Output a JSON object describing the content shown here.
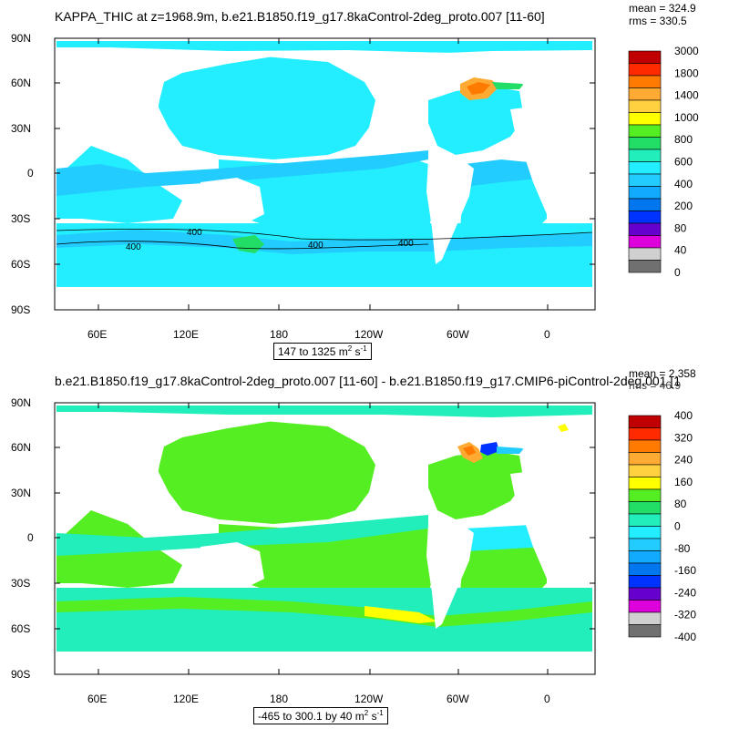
{
  "panel_top": {
    "title": "KAPPA_THIC at z=1968.9m, b.e21.B1850.f19_g17.8kaControl-2deg_proto.007 [11-60]",
    "mean": "mean = 324.9",
    "rms": "rms = 330.5",
    "units_range": "147 to 1325",
    "units_unit": "m",
    "units_exp": "2",
    "units_tail": "s",
    "units_exp2": "-1",
    "colorbar_labels": [
      "3000",
      "1800",
      "1400",
      "1000",
      "800",
      "600",
      "400",
      "200",
      "80",
      "40",
      "0"
    ],
    "colorbar_colors": [
      "#c00000",
      "#ff2a00",
      "#ff7a00",
      "#ffaa33",
      "#ffd040",
      "#ffff00",
      "#55ee22",
      "#22dd66",
      "#22eebb",
      "#22eeff",
      "#22ccff",
      "#11aaff",
      "#0077ee",
      "#0033ff",
      "#6600cc",
      "#dd00dd",
      "#d0d0d0",
      "#707070"
    ],
    "contour_labels": [
      "400",
      "400",
      "400",
      "400"
    ]
  },
  "panel_bottom": {
    "title": "b.e21.B1850.f19_g17.8kaControl-2deg_proto.007 [11-60] - b.e21.B1850.f19_g17.CMIP6-piControl-2deg.001 [1",
    "mean": "mean = 2.358",
    "rms": "rms = 46.9",
    "units_range": "-465 to 300.1 by 40",
    "units_unit": "m",
    "units_exp": "2",
    "units_tail": "s",
    "units_exp2": "-1",
    "colorbar_labels": [
      "400",
      "320",
      "240",
      "160",
      "80",
      "0",
      "-80",
      "-160",
      "-240",
      "-320",
      "-400"
    ],
    "colorbar_colors": [
      "#c00000",
      "#ff2a00",
      "#ff7a00",
      "#ffaa33",
      "#ffd040",
      "#ffff00",
      "#55ee22",
      "#22dd66",
      "#22eebb",
      "#22eeff",
      "#22ccff",
      "#11aaff",
      "#0077ee",
      "#0033ff",
      "#6600cc",
      "#dd00dd",
      "#d0d0d0",
      "#707070"
    ]
  },
  "axes": {
    "lat_labels": [
      "90N",
      "60N",
      "30N",
      "0",
      "30S",
      "60S",
      "90S"
    ],
    "lon_labels": [
      "60E",
      "120E",
      "180",
      "120W",
      "60W",
      "0"
    ]
  }
}
